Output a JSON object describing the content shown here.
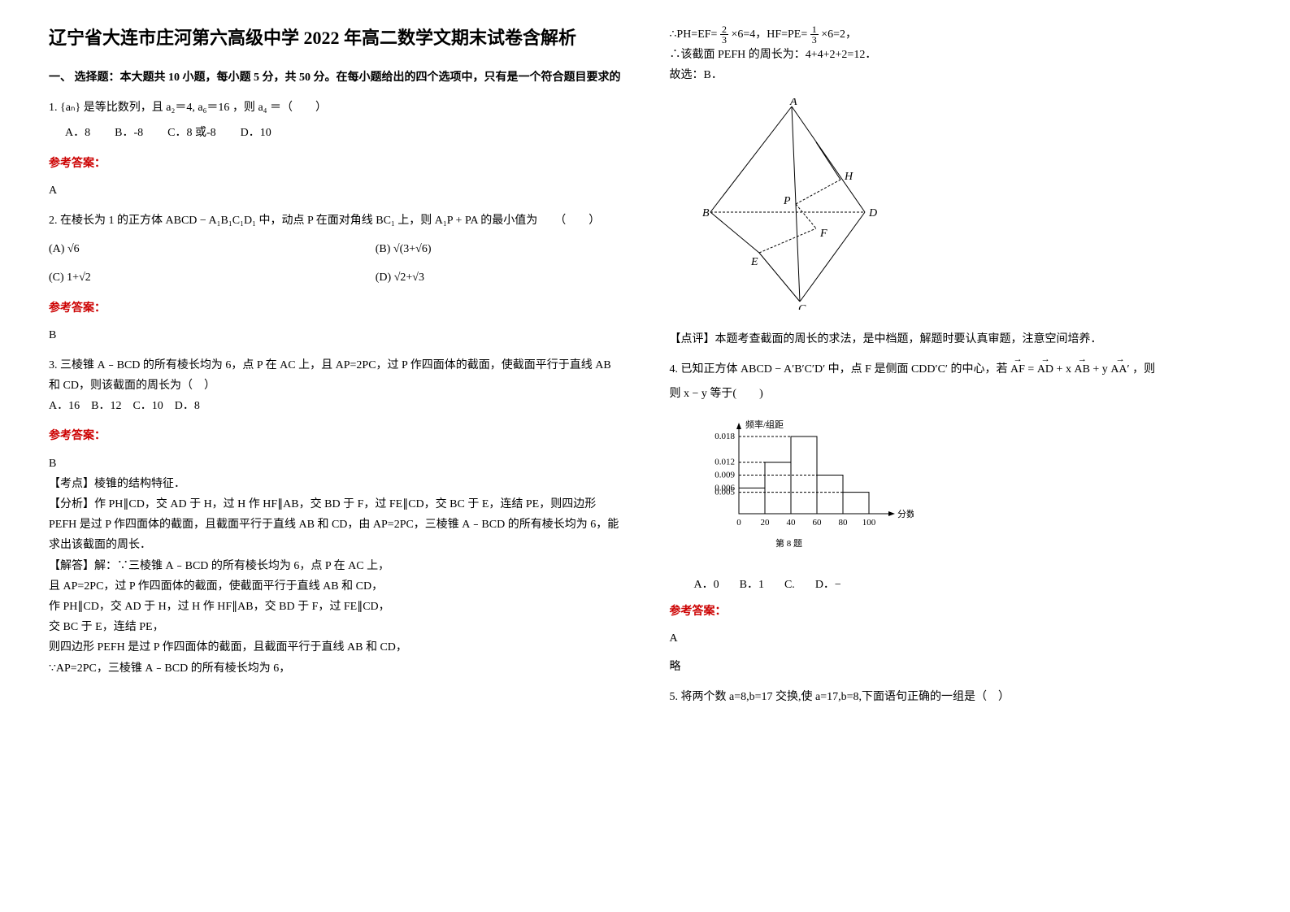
{
  "title": "辽宁省大连市庄河第六高级中学 2022 年高二数学文期末试卷含解析",
  "section1_header": "一、 选择题：本大题共 10 小题，每小题 5 分，共 50 分。在每小题给出的四个选项中，只有是一个符合题目要求的",
  "answer_label": "参考答案：",
  "q1": {
    "stem_prefix": "1. ",
    "stem_middle": " 是等比数列，且 ",
    "stem_end": "，则 ",
    "stem_tail": "＝（　　）",
    "expr1": "{aₙ}",
    "expr2": "a₂＝4, a₆＝16",
    "expr3": "a₄",
    "optA": "A．8",
    "optB": "B．-8",
    "optC": "C．8 或-8",
    "optD": "D．10",
    "answer": "A"
  },
  "q2": {
    "stem": "2. 在棱长为 1 的正方体 ",
    "cube": "ABCD − A₁B₁C₁D₁",
    "mid": " 中，动点 P 在面对角线 ",
    "diag": "BC₁",
    "end": " 上，则 ",
    "expr": "A₁P + PA",
    "tail": " 的最小值为　　（　　）",
    "optA_label": "(A) ",
    "optA": "√6",
    "optB_label": "(B) ",
    "optB": "√(3+√6)",
    "optC_label": "(C) ",
    "optC": "1+√2",
    "optD_label": "(D) ",
    "optD": "√2+√3",
    "answer": "B"
  },
  "q3": {
    "stem": "3. 三棱锥 A﹣BCD 的所有棱长均为 6，点 P 在 AC 上，且 AP=2PC，过 P 作四面体的截面，使截面平行于直线 AB 和 CD，则该截面的周长为（　）",
    "options": "A．16　B．12　C．10　D．8",
    "answer": "B",
    "kaodian_label": "【考点】",
    "kaodian": "棱锥的结构特征．",
    "fenxi_label": "【分析】",
    "fenxi": "作 PH∥CD，交 AD 于 H，过 H 作 HF∥AB，交 BD 于 F，过 FE∥CD，交 BC 于 E，连结 PE，则四边形 PEFH 是过 P 作四面体的截面，且截面平行于直线 AB 和 CD，由 AP=2PC，三棱锥 A﹣BCD 的所有棱长均为 6，能求出该截面的周长．",
    "jieda_label": "【解答】",
    "jieda_l1": "解：∵三棱锥 A﹣BCD 的所有棱长均为 6，点 P 在 AC 上，",
    "jieda_l2": "且 AP=2PC，过 P 作四面体的截面，使截面平行于直线 AB 和 CD，",
    "jieda_l3": "作 PH∥CD，交 AD 于 H，过 H 作 HF∥AB，交 BD 于 F，过 FE∥CD，",
    "jieda_l4": "交 BC 于 E，连结 PE，",
    "jieda_l5": "则四边形 PEFH 是过 P 作四面体的截面，且截面平行于直线 AB 和 CD，",
    "jieda_l6": "∵AP=2PC，三棱锥 A﹣BCD 的所有棱长均为 6，",
    "jieda_r1_prefix": "∴PH=EF= ",
    "jieda_r1_mid": "×6=4，HF=PE= ",
    "jieda_r1_end": "×6=2，",
    "jieda_r2": "∴该截面 PEFH 的周长为：4+4+2+2=12．",
    "jieda_r3": "故选：B．",
    "dianping_label": "【点评】",
    "dianping": "本题考查截面的周长的求法，是中档题，解题时要认真审题，注意空间培养．",
    "geom": {
      "A": "A",
      "B": "B",
      "C": "C",
      "D": "D",
      "E": "E",
      "F": "F",
      "H": "H",
      "P": "P"
    }
  },
  "q4": {
    "stem_prefix": "4. 已知正方体 ",
    "cube": "ABCD − A′B′C′D′",
    "mid1": " 中，点 ",
    "F": "F",
    "mid2": " 是侧面 ",
    "face": "CDD′C′",
    "mid3": " 的中心，若 ",
    "AF": "AF",
    "eq": " = ",
    "AD": "AD",
    "plus1": " + x ",
    "AB": "AB",
    "plus2": " + y ",
    "AA": "AA′",
    "tail": "，则 ",
    "xy": "x − y",
    "end": " 等于(　　)",
    "chart": {
      "ylabel": "频率/组距",
      "xlabel": "分数",
      "caption": "第 8 题",
      "yticks": [
        "0.005",
        "0.006",
        "0.009",
        "0.012",
        "0.018"
      ],
      "xticks": [
        "0",
        "20",
        "40",
        "60",
        "80",
        "100"
      ],
      "heights": [
        0.006,
        0.012,
        0.018,
        0.009,
        0.005
      ]
    },
    "optA": "A．0",
    "optB": "B．1",
    "optC": "C.",
    "optD": "D．−",
    "answer": "A",
    "lue": "略"
  },
  "q5": {
    "stem": "5. 将两个数 a=8,b=17 交换,使 a=17,b=8,下面语句正确的一组是（　）"
  }
}
